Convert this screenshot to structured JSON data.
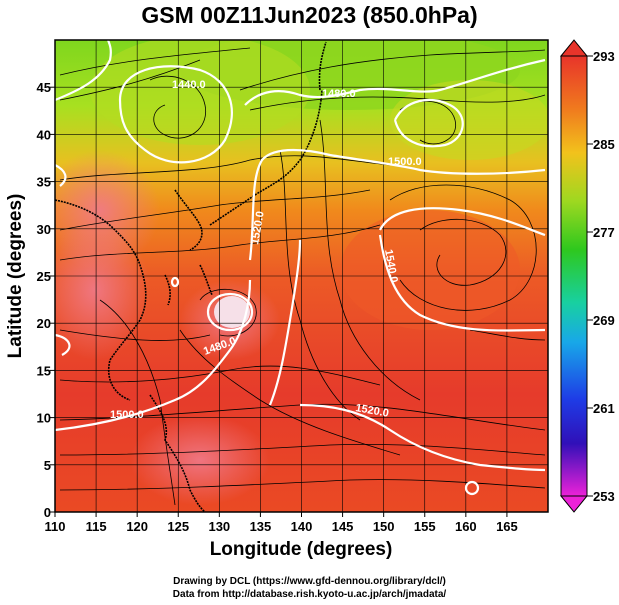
{
  "title": "GSM 00Z11Jun2023 (850.0hPa)",
  "xlabel": "Longitude (degrees)",
  "ylabel": "Latitude  (degrees)",
  "credit_line1": "Drawing by DCL (https://www.gfd-dennou.org/library/dcl/)",
  "credit_line2": "Data from http://database.rish.kyoto-u.ac.jp/arch/jmadata/",
  "map_data": {
    "lon_range": [
      110,
      170
    ],
    "lat_range": [
      0,
      50
    ],
    "x_ticks": [
      "110",
      "115",
      "120",
      "125",
      "130",
      "135",
      "140",
      "145",
      "150",
      "155",
      "160",
      "165"
    ],
    "y_ticks": [
      "0",
      "5",
      "10",
      "15",
      "20",
      "25",
      "30",
      "35",
      "40",
      "45"
    ],
    "colorbar_ticks": [
      "293",
      "285",
      "277",
      "269",
      "261",
      "253"
    ],
    "colorbar_range": [
      253,
      293
    ],
    "contour_labels": [
      "1440.0",
      "1480.0",
      "1500.0",
      "1520.0",
      "1540.0",
      "1520.0",
      "1480.0",
      "1500.0"
    ],
    "colors": {
      "warm": "#e53a2a",
      "mid": "#f08a1c",
      "green": "#44cc22",
      "blue": "#2244ee",
      "magenta": "#ee22cc"
    }
  }
}
